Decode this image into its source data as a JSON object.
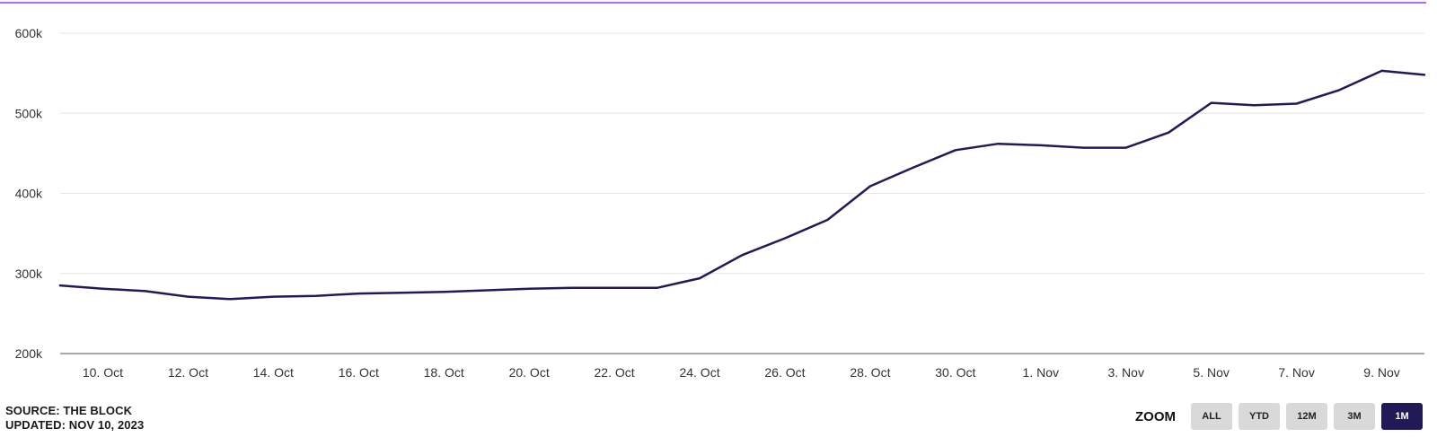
{
  "footer": {
    "source": "SOURCE: THE BLOCK",
    "updated": "UPDATED: NOV 10, 2023"
  },
  "zoom": {
    "label": "ZOOM",
    "options": [
      "ALL",
      "YTD",
      "12M",
      "3M",
      "1M"
    ],
    "selected": "1M"
  },
  "colors": {
    "line": "#221a58",
    "accent_rule": "#b36cf0",
    "grid": "#e6e6e6",
    "active_button": "#221a58",
    "inactive_button": "#d9d9d9"
  },
  "chart_data": {
    "type": "line",
    "title": "",
    "xlabel": "",
    "ylabel": "",
    "ylim": [
      200000,
      600000
    ],
    "grid": true,
    "y_ticks": [
      {
        "value": 200000,
        "label": "200k"
      },
      {
        "value": 300000,
        "label": "300k"
      },
      {
        "value": 400000,
        "label": "400k"
      },
      {
        "value": 500000,
        "label": "500k"
      },
      {
        "value": 600000,
        "label": "600k"
      }
    ],
    "x_ticks": [
      {
        "date": "2023-10-10",
        "label": "10. Oct"
      },
      {
        "date": "2023-10-12",
        "label": "12. Oct"
      },
      {
        "date": "2023-10-14",
        "label": "14. Oct"
      },
      {
        "date": "2023-10-16",
        "label": "16. Oct"
      },
      {
        "date": "2023-10-18",
        "label": "18. Oct"
      },
      {
        "date": "2023-10-20",
        "label": "20. Oct"
      },
      {
        "date": "2023-10-22",
        "label": "22. Oct"
      },
      {
        "date": "2023-10-24",
        "label": "24. Oct"
      },
      {
        "date": "2023-10-26",
        "label": "26. Oct"
      },
      {
        "date": "2023-10-28",
        "label": "28. Oct"
      },
      {
        "date": "2023-10-30",
        "label": "30. Oct"
      },
      {
        "date": "2023-11-01",
        "label": "1. Nov"
      },
      {
        "date": "2023-11-03",
        "label": "3. Nov"
      },
      {
        "date": "2023-11-05",
        "label": "5. Nov"
      },
      {
        "date": "2023-11-07",
        "label": "7. Nov"
      },
      {
        "date": "2023-11-09",
        "label": "9. Nov"
      }
    ],
    "x_range": [
      "2023-10-09",
      "2023-11-10"
    ],
    "series": [
      {
        "x": [
          "2023-10-09",
          "2023-10-10",
          "2023-10-11",
          "2023-10-12",
          "2023-10-13",
          "2023-10-14",
          "2023-10-15",
          "2023-10-16",
          "2023-10-17",
          "2023-10-18",
          "2023-10-19",
          "2023-10-20",
          "2023-10-21",
          "2023-10-22",
          "2023-10-23",
          "2023-10-24",
          "2023-10-25",
          "2023-10-26",
          "2023-10-27",
          "2023-10-28",
          "2023-10-29",
          "2023-10-30",
          "2023-10-31",
          "2023-11-01",
          "2023-11-02",
          "2023-11-03",
          "2023-11-04",
          "2023-11-05",
          "2023-11-06",
          "2023-11-07",
          "2023-11-08",
          "2023-11-09",
          "2023-11-10"
        ],
        "values": [
          285000,
          281000,
          278000,
          271000,
          268000,
          271000,
          272000,
          275000,
          276000,
          277000,
          279000,
          281000,
          282000,
          282000,
          282000,
          294000,
          323000,
          344000,
          367000,
          409000,
          432000,
          454000,
          462000,
          460000,
          457000,
          457000,
          476000,
          513000,
          510000,
          512000,
          529000,
          553000,
          548000
        ]
      }
    ]
  }
}
